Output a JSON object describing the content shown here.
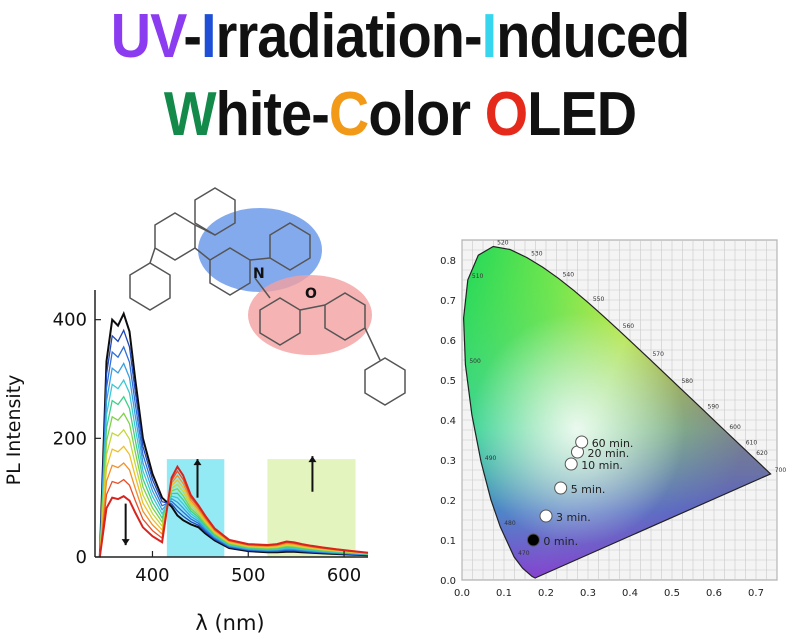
{
  "title": {
    "line1": [
      {
        "text": "UV",
        "color": "#8b3cf0"
      },
      {
        "text": "-",
        "color": "#111111"
      },
      {
        "text": "I",
        "color": "#1e4fd6"
      },
      {
        "text": "rradiation-",
        "color": "#111111"
      },
      {
        "text": "I",
        "color": "#38d6ee"
      },
      {
        "text": "nduced",
        "color": "#111111"
      }
    ],
    "line2": [
      {
        "text": "W",
        "color": "#138a4a"
      },
      {
        "text": "hite-",
        "color": "#111111"
      },
      {
        "text": "C",
        "color": "#f29a18"
      },
      {
        "text": "olor ",
        "color": "#111111"
      },
      {
        "text": "O",
        "color": "#e52a1c"
      },
      {
        "text": "LED",
        "color": "#111111"
      }
    ]
  },
  "molecule": {
    "atom_n": "N",
    "atom_o": "O"
  },
  "chart_data": [
    {
      "type": "line",
      "title": "",
      "xlabel": "λ (nm)",
      "ylabel": "PL Intensity",
      "xlim": [
        340,
        625
      ],
      "ylim": [
        0,
        450
      ],
      "xticks": [
        400,
        500,
        600
      ],
      "yticks": [
        0,
        200,
        400
      ],
      "series_colors": [
        "#0d0d0d",
        "#2046b8",
        "#2f6fd6",
        "#3aa0e0",
        "#3cc8d4",
        "#3fcf8a",
        "#7fd24a",
        "#c4d83a",
        "#f0c02a",
        "#f0902a",
        "#e8502a",
        "#d8241e"
      ],
      "x": [
        345,
        352,
        358,
        364,
        370,
        376,
        382,
        390,
        400,
        410,
        420,
        426,
        432,
        440,
        448,
        455,
        465,
        480,
        500,
        520,
        530,
        540,
        548,
        556,
        566,
        578,
        592,
        608,
        625
      ],
      "curves": [
        {
          "values": [
            0,
            330,
            400,
            390,
            410,
            380,
            300,
            200,
            140,
            100,
            85,
            70,
            62,
            55,
            50,
            40,
            28,
            15,
            10,
            8,
            8,
            9,
            9,
            8,
            7,
            6,
            5,
            4,
            3
          ]
        },
        {
          "values": [
            0,
            300,
            370,
            360,
            380,
            350,
            270,
            180,
            125,
            90,
            92,
            105,
            95,
            72,
            60,
            48,
            33,
            20,
            15,
            14,
            15,
            18,
            17,
            15,
            13,
            11,
            9,
            7,
            5
          ]
        }
      ],
      "bands": [
        {
          "x": [
            415,
            475
          ],
          "color": "#6fe3f0"
        },
        {
          "x": [
            520,
            612
          ],
          "color": "#d9f0a8"
        }
      ],
      "arrows": [
        {
          "x": 372,
          "from": 90,
          "to": 20,
          "direction": "down"
        },
        {
          "x": 447,
          "from": 100,
          "to": 165,
          "direction": "up"
        },
        {
          "x": 567,
          "from": 110,
          "to": 170,
          "direction": "up"
        }
      ]
    },
    {
      "type": "scatter",
      "title": "",
      "xlabel": "",
      "ylabel": "",
      "xlim": [
        0.0,
        0.75
      ],
      "ylim": [
        0.0,
        0.85
      ],
      "xticks": [
        "0.0",
        "0.1",
        "0.2",
        "0.3",
        "0.4",
        "0.5",
        "0.6",
        "0.7"
      ],
      "yticks": [
        "0.0",
        "0.1",
        "0.2",
        "0.3",
        "0.4",
        "0.5",
        "0.6",
        "0.7",
        "0.8"
      ],
      "grid": true,
      "locus": [
        [
          0.1741,
          0.005
        ],
        [
          0.1666,
          0.0089
        ],
        [
          0.144,
          0.0297
        ],
        [
          0.1241,
          0.0578
        ],
        [
          0.0913,
          0.1327
        ],
        [
          0.0687,
          0.2007
        ],
        [
          0.0454,
          0.295
        ],
        [
          0.0235,
          0.4127
        ],
        [
          0.0082,
          0.5384
        ],
        [
          0.0039,
          0.6548
        ],
        [
          0.0139,
          0.7502
        ],
        [
          0.0389,
          0.812
        ],
        [
          0.0743,
          0.8338
        ],
        [
          0.1142,
          0.8262
        ],
        [
          0.1547,
          0.8059
        ],
        [
          0.1929,
          0.7816
        ],
        [
          0.2296,
          0.7543
        ],
        [
          0.2658,
          0.7243
        ],
        [
          0.3016,
          0.6923
        ],
        [
          0.3373,
          0.6589
        ],
        [
          0.3731,
          0.6245
        ],
        [
          0.4087,
          0.5896
        ],
        [
          0.4441,
          0.5547
        ],
        [
          0.4788,
          0.5202
        ],
        [
          0.5125,
          0.4866
        ],
        [
          0.5448,
          0.4544
        ],
        [
          0.5752,
          0.4242
        ],
        [
          0.6029,
          0.3965
        ],
        [
          0.627,
          0.3725
        ],
        [
          0.6482,
          0.3514
        ],
        [
          0.6658,
          0.334
        ],
        [
          0.6915,
          0.3083
        ],
        [
          0.7347,
          0.2653
        ]
      ],
      "wavelength_labels": [
        {
          "text": "470",
          "x": 0.124,
          "y": 0.058
        },
        {
          "text": "480",
          "x": 0.091,
          "y": 0.133
        },
        {
          "text": "490",
          "x": 0.045,
          "y": 0.295
        },
        {
          "text": "500",
          "x": 0.008,
          "y": 0.538
        },
        {
          "text": "510",
          "x": 0.014,
          "y": 0.75
        },
        {
          "text": "520",
          "x": 0.074,
          "y": 0.834
        },
        {
          "text": "530",
          "x": 0.155,
          "y": 0.806
        },
        {
          "text": "540",
          "x": 0.23,
          "y": 0.754
        },
        {
          "text": "550",
          "x": 0.302,
          "y": 0.692
        },
        {
          "text": "560",
          "x": 0.373,
          "y": 0.625
        },
        {
          "text": "570",
          "x": 0.444,
          "y": 0.555
        },
        {
          "text": "580",
          "x": 0.513,
          "y": 0.487
        },
        {
          "text": "590",
          "x": 0.575,
          "y": 0.424
        },
        {
          "text": "600",
          "x": 0.627,
          "y": 0.373
        },
        {
          "text": "610",
          "x": 0.666,
          "y": 0.334
        },
        {
          "text": "620",
          "x": 0.691,
          "y": 0.308
        },
        {
          "text": "700",
          "x": 0.735,
          "y": 0.265
        }
      ],
      "points": [
        {
          "label": "0 min.",
          "x": 0.17,
          "y": 0.1,
          "fill": "#000000"
        },
        {
          "label": "3 min.",
          "x": 0.2,
          "y": 0.16,
          "fill": "#ffffff"
        },
        {
          "label": "5 min.",
          "x": 0.235,
          "y": 0.23,
          "fill": "#ffffff"
        },
        {
          "label": "10 min.",
          "x": 0.26,
          "y": 0.29,
          "fill": "#ffffff"
        },
        {
          "label": "20 min.",
          "x": 0.275,
          "y": 0.32,
          "fill": "#ffffff"
        },
        {
          "label": "60 min.",
          "x": 0.285,
          "y": 0.345,
          "fill": "#ffffff"
        }
      ]
    }
  ]
}
